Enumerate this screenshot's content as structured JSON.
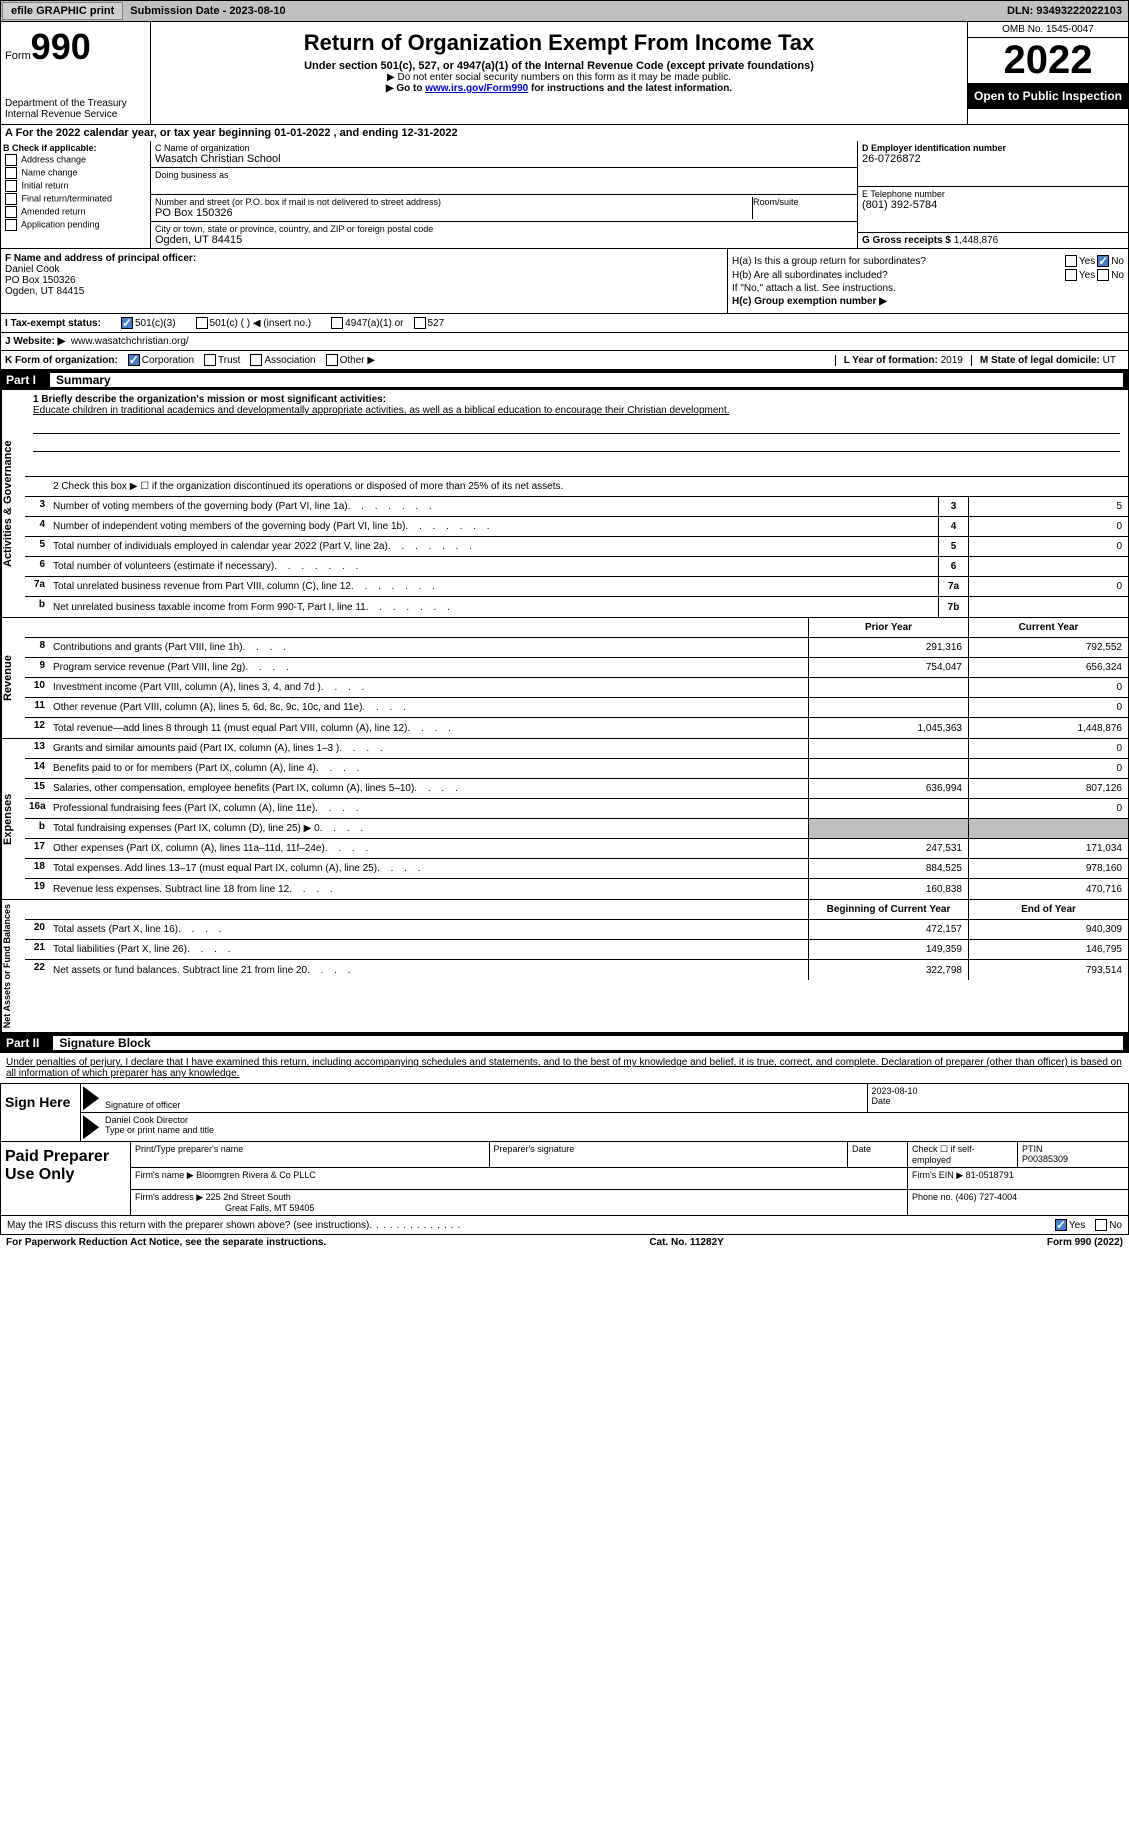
{
  "topbar": {
    "efile_btn": "efile GRAPHIC print",
    "submission_date": "Submission Date - 2023-08-10",
    "dln": "DLN: 93493222022103"
  },
  "header": {
    "form_label": "Form",
    "form_number": "990",
    "dept": "Department of the Treasury Internal Revenue Service",
    "title": "Return of Organization Exempt From Income Tax",
    "subtitle": "Under section 501(c), 527, or 4947(a)(1) of the Internal Revenue Code (except private foundations)",
    "note1": "▶ Do not enter social security numbers on this form as it may be made public.",
    "note2_pre": "▶ Go to ",
    "note2_link": "www.irs.gov/Form990",
    "note2_post": " for instructions and the latest information.",
    "omb": "OMB No. 1545-0047",
    "year": "2022",
    "open": "Open to Public Inspection"
  },
  "line_a": "A For the 2022 calendar year, or tax year beginning 01-01-2022   , and ending 12-31-2022",
  "section_b": {
    "b_label": "B Check if applicable:",
    "opts": [
      "Address change",
      "Name change",
      "Initial return",
      "Final return/terminated",
      "Amended return",
      "Application pending"
    ],
    "c_label": "C Name of organization",
    "org_name": "Wasatch Christian School",
    "dba_label": "Doing business as",
    "addr_label": "Number and street (or P.O. box if mail is not delivered to street address)",
    "room_label": "Room/suite",
    "addr": "PO Box 150326",
    "city_label": "City or town, state or province, country, and ZIP or foreign postal code",
    "city": "Ogden, UT  84415",
    "d_label": "D Employer identification number",
    "ein": "26-0726872",
    "e_label": "E Telephone number",
    "phone": "(801) 392-5784",
    "g_label": "G Gross receipts $",
    "gross": "1,448,876"
  },
  "section_fh": {
    "f_label": "F Name and address of principal officer:",
    "officer": "Daniel Cook",
    "officer_addr1": "PO Box 150326",
    "officer_addr2": "Ogden, UT  84415",
    "ha": "H(a)  Is this a group return for subordinates?",
    "hb": "H(b)  Are all subordinates included?",
    "hb_note": "If \"No,\" attach a list. See instructions.",
    "hc": "H(c)  Group exemption number ▶",
    "yes": "Yes",
    "no": "No"
  },
  "line_i": {
    "label": "I   Tax-exempt status:",
    "o1": "501(c)(3)",
    "o2": "501(c) (  ) ◀ (insert no.)",
    "o3": "4947(a)(1) or",
    "o4": "527"
  },
  "line_j": {
    "label": "J  Website: ▶",
    "url": "www.wasatchchristian.org/"
  },
  "line_k": {
    "label": "K Form of organization:",
    "o1": "Corporation",
    "o2": "Trust",
    "o3": "Association",
    "o4": "Other ▶",
    "l_label": "L Year of formation:",
    "l_val": "2019",
    "m_label": "M State of legal domicile:",
    "m_val": "UT"
  },
  "part1": {
    "num": "Part I",
    "title": "Summary"
  },
  "mission": {
    "q": "1  Briefly describe the organization's mission or most significant activities:",
    "text": "Educate children in traditional academics and developmentally appropriate activities, as well as a biblical education to encourage their Christian development."
  },
  "line2": "2   Check this box ▶ ☐ if the organization discontinued its operations or disposed of more than 25% of its net assets.",
  "summary_rows": [
    {
      "num": "3",
      "desc": "Number of voting members of the governing body (Part VI, line 1a)",
      "box": "3",
      "val": "5"
    },
    {
      "num": "4",
      "desc": "Number of independent voting members of the governing body (Part VI, line 1b)",
      "box": "4",
      "val": "0"
    },
    {
      "num": "5",
      "desc": "Total number of individuals employed in calendar year 2022 (Part V, line 2a)",
      "box": "5",
      "val": "0"
    },
    {
      "num": "6",
      "desc": "Total number of volunteers (estimate if necessary)",
      "box": "6",
      "val": ""
    },
    {
      "num": "7a",
      "desc": "Total unrelated business revenue from Part VIII, column (C), line 12",
      "box": "7a",
      "val": "0"
    },
    {
      "num": "b",
      "desc": "Net unrelated business taxable income from Form 990-T, Part I, line 11",
      "box": "7b",
      "val": ""
    }
  ],
  "col_headers": {
    "prior": "Prior Year",
    "current": "Current Year"
  },
  "revenue_label": "Revenue",
  "revenue_rows": [
    {
      "num": "8",
      "desc": "Contributions and grants (Part VIII, line 1h)",
      "prior": "291,316",
      "current": "792,552"
    },
    {
      "num": "9",
      "desc": "Program service revenue (Part VIII, line 2g)",
      "prior": "754,047",
      "current": "656,324"
    },
    {
      "num": "10",
      "desc": "Investment income (Part VIII, column (A), lines 3, 4, and 7d )",
      "prior": "",
      "current": "0"
    },
    {
      "num": "11",
      "desc": "Other revenue (Part VIII, column (A), lines 5, 6d, 8c, 9c, 10c, and 11e)",
      "prior": "",
      "current": "0"
    },
    {
      "num": "12",
      "desc": "Total revenue—add lines 8 through 11 (must equal Part VIII, column (A), line 12)",
      "prior": "1,045,363",
      "current": "1,448,876"
    }
  ],
  "expenses_label": "Expenses",
  "expenses_rows": [
    {
      "num": "13",
      "desc": "Grants and similar amounts paid (Part IX, column (A), lines 1–3 )",
      "prior": "",
      "current": "0"
    },
    {
      "num": "14",
      "desc": "Benefits paid to or for members (Part IX, column (A), line 4)",
      "prior": "",
      "current": "0"
    },
    {
      "num": "15",
      "desc": "Salaries, other compensation, employee benefits (Part IX, column (A), lines 5–10)",
      "prior": "636,994",
      "current": "807,126"
    },
    {
      "num": "16a",
      "desc": "Professional fundraising fees (Part IX, column (A), line 11e)",
      "prior": "",
      "current": "0"
    },
    {
      "num": "b",
      "desc": "Total fundraising expenses (Part IX, column (D), line 25) ▶ 0",
      "prior": "shade",
      "current": "shade"
    },
    {
      "num": "17",
      "desc": "Other expenses (Part IX, column (A), lines 11a–11d, 11f–24e)",
      "prior": "247,531",
      "current": "171,034"
    },
    {
      "num": "18",
      "desc": "Total expenses. Add lines 13–17 (must equal Part IX, column (A), line 25)",
      "prior": "884,525",
      "current": "978,160"
    },
    {
      "num": "19",
      "desc": "Revenue less expenses. Subtract line 18 from line 12",
      "prior": "160,838",
      "current": "470,716"
    }
  ],
  "net_label": "Net Assets or Fund Balances",
  "net_headers": {
    "prior": "Beginning of Current Year",
    "current": "End of Year"
  },
  "net_rows": [
    {
      "num": "20",
      "desc": "Total assets (Part X, line 16)",
      "prior": "472,157",
      "current": "940,309"
    },
    {
      "num": "21",
      "desc": "Total liabilities (Part X, line 26)",
      "prior": "149,359",
      "current": "146,795"
    },
    {
      "num": "22",
      "desc": "Net assets or fund balances. Subtract line 21 from line 20",
      "prior": "322,798",
      "current": "793,514"
    }
  ],
  "part2": {
    "num": "Part II",
    "title": "Signature Block"
  },
  "sig_text": "Under penalties of perjury, I declare that I have examined this return, including accompanying schedules and statements, and to the best of my knowledge and belief, it is true, correct, and complete. Declaration of preparer (other than officer) is based on all information of which preparer has any knowledge.",
  "sign": {
    "here": "Sign Here",
    "sig_label": "Signature of officer",
    "date": "2023-08-10",
    "date_label": "Date",
    "name": "Daniel Cook  Director",
    "name_label": "Type or print name and title"
  },
  "prep": {
    "label": "Paid Preparer Use Only",
    "r1_c1": "Print/Type preparer's name",
    "r1_c2": "Preparer's signature",
    "r1_c3": "Date",
    "r1_c4_lbl": "Check ☐ if self-employed",
    "r1_c5_lbl": "PTIN",
    "r1_c5": "P00385309",
    "r2_lbl": "Firm's name    ▶",
    "r2_val": "Bloomgren Rivera & Co PLLC",
    "r2_ein_lbl": "Firm's EIN ▶",
    "r2_ein": "81-0518791",
    "r3_lbl": "Firm's address ▶",
    "r3_val": "225 2nd Street South",
    "r3_city": "Great Falls, MT  59405",
    "r3_ph_lbl": "Phone no.",
    "r3_ph": "(406) 727-4004"
  },
  "discuss": {
    "q": "May the IRS discuss this return with the preparer shown above? (see instructions)",
    "yes": "Yes",
    "no": "No"
  },
  "footer": {
    "left": "For Paperwork Reduction Act Notice, see the separate instructions.",
    "mid": "Cat. No. 11282Y",
    "right": "Form 990 (2022)"
  },
  "activities_label": "Activities & Governance"
}
